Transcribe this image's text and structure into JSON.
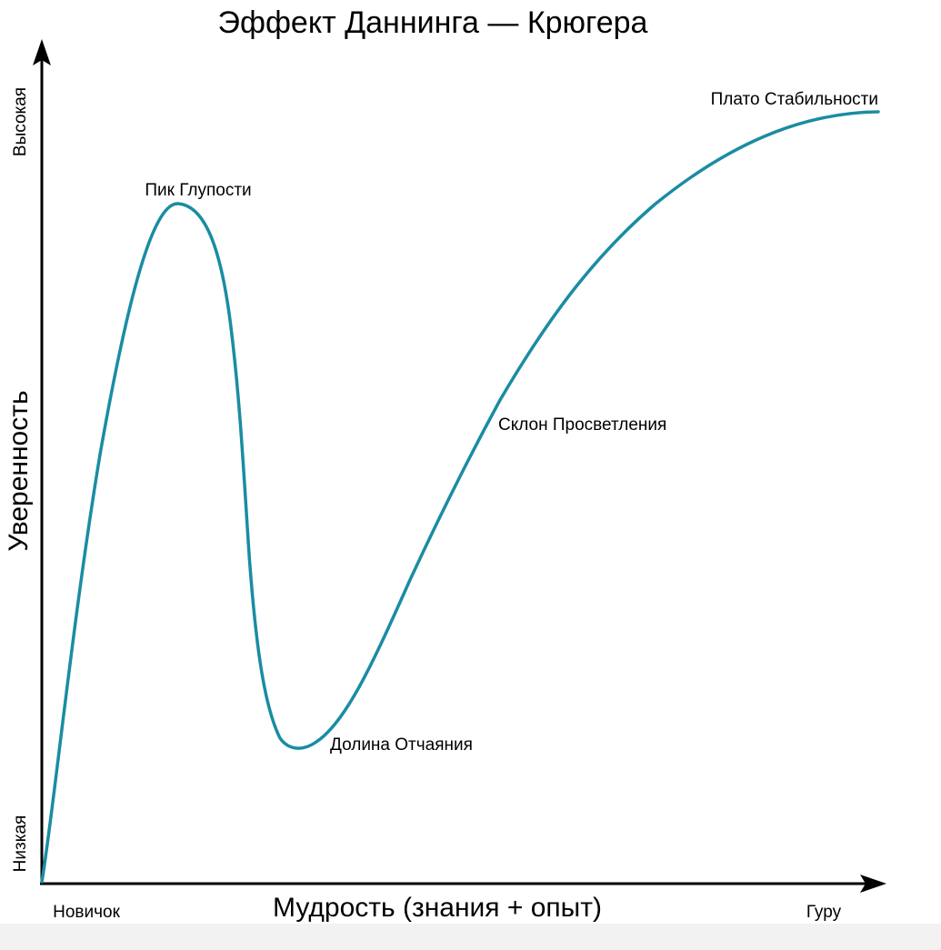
{
  "title": "Эффект Даннинга — Крюгера",
  "y_axis": {
    "label": "Уверенность",
    "high": "Высокая",
    "low": "Низкая"
  },
  "x_axis": {
    "label": "Мудрость (знания + опыт)",
    "start": "Новичок",
    "end": "Гуру"
  },
  "stages": {
    "peak": "Пик Глупости",
    "valley": "Долина Отчаяния",
    "slope": "Склон Просветления",
    "plateau": "Плато Стабильности"
  },
  "colors": {
    "curve": "#1a8ca3",
    "axis": "#000000",
    "text": "#000000"
  }
}
